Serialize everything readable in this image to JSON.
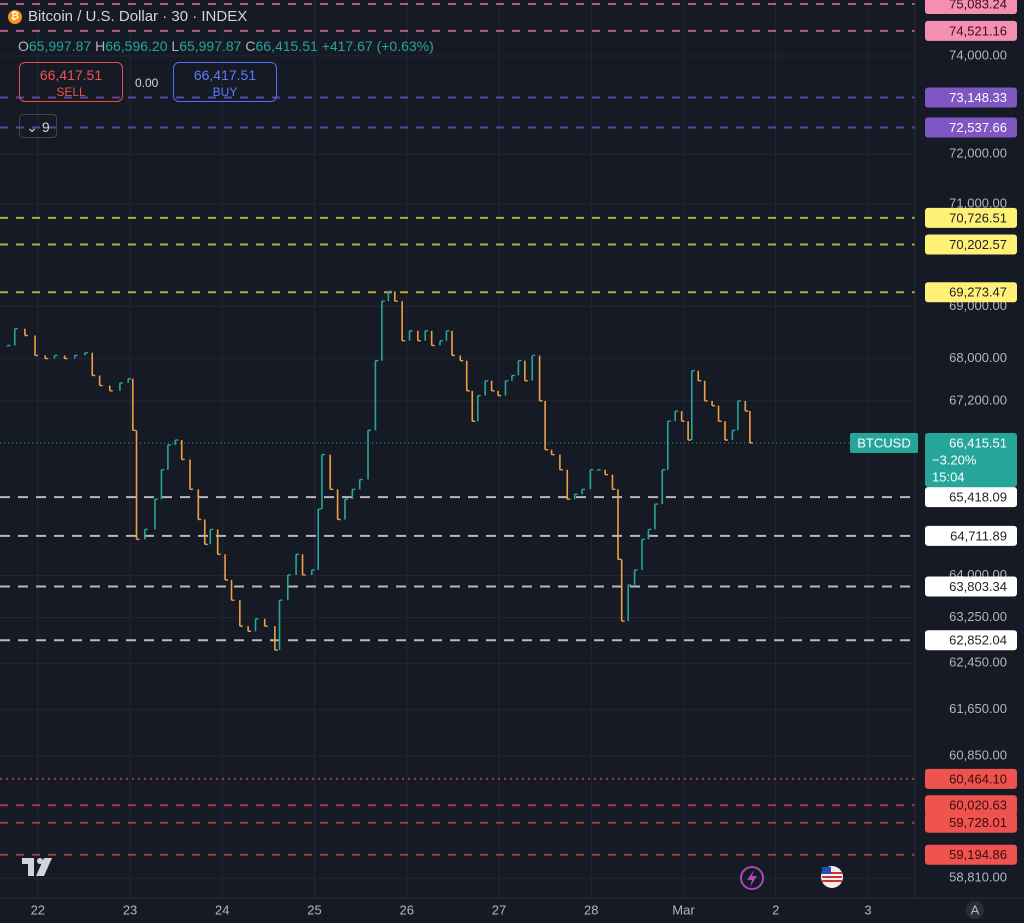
{
  "chart_data": {
    "type": "bars",
    "title": "Bitcoin / U.S. Dollar · 30 · INDEX",
    "header": {
      "o_label": "O",
      "o": "65,997.87",
      "h_label": "H",
      "h": "66,596.20",
      "l_label": "L",
      "l": "65,997.87",
      "c_label": "C",
      "c": "66,415.51",
      "change": "+417.67 (+0.63%)"
    },
    "trade": {
      "sell_price": "66,417.51",
      "sell": "SELL",
      "spread": "0.00",
      "buy_price": "66,417.51",
      "buy": "BUY",
      "indicators": "9"
    },
    "x": [
      -0.33,
      -0.25,
      -0.14,
      -0.03,
      0.08,
      0.18,
      0.29,
      0.4,
      0.51,
      0.59,
      0.67,
      0.78,
      0.89,
      0.98,
      1.03,
      1.07,
      1.16,
      1.27,
      1.34,
      1.41,
      1.49,
      1.56,
      1.65,
      1.74,
      1.81,
      1.87,
      1.95,
      2.03,
      2.1,
      2.19,
      2.28,
      2.36,
      2.46,
      2.57,
      2.62,
      2.71,
      2.8,
      2.87,
      2.97,
      3.04,
      3.08,
      3.17,
      3.25,
      3.33,
      3.41,
      3.49,
      3.58,
      3.66,
      3.73,
      3.8,
      3.87,
      3.95,
      4.03,
      4.12,
      4.2,
      4.27,
      4.36,
      4.43,
      4.49,
      4.58,
      4.65,
      4.71,
      4.77,
      4.85,
      4.92,
      4.99,
      5.07,
      5.14,
      5.21,
      5.28,
      5.36,
      5.44,
      5.5,
      5.57,
      5.66,
      5.74,
      5.82,
      5.9,
      5.99,
      6.07,
      6.15,
      6.23,
      6.29,
      6.33,
      6.4,
      6.47,
      6.55,
      6.62,
      6.69,
      6.77,
      6.83,
      6.91,
      6.98,
      7.05,
      7.09,
      7.16,
      7.23,
      7.31,
      7.38,
      7.45,
      7.53,
      7.59,
      7.67,
      7.72
    ],
    "values": [
      68250,
      68570,
      68440,
      68060,
      68000,
      68060,
      68000,
      68060,
      68110,
      67680,
      67490,
      67390,
      67540,
      67620,
      66650,
      64650,
      64830,
      65380,
      65920,
      66380,
      66470,
      66110,
      65560,
      65010,
      64560,
      64830,
      64380,
      63920,
      63560,
      63100,
      63010,
      63230,
      63100,
      62680,
      63560,
      64010,
      64380,
      64010,
      64100,
      65200,
      66200,
      65560,
      65010,
      65380,
      65560,
      65740,
      66650,
      67960,
      69100,
      69290,
      69100,
      68340,
      68530,
      68340,
      68530,
      68250,
      68340,
      68530,
      68060,
      67960,
      67390,
      66820,
      67300,
      67580,
      67390,
      67300,
      67580,
      67680,
      67960,
      67580,
      68060,
      67200,
      66290,
      66200,
      65920,
      65380,
      65470,
      65560,
      65920,
      65920,
      65830,
      65560,
      64290,
      63190,
      63830,
      64100,
      64650,
      64830,
      65290,
      65920,
      66820,
      67010,
      66820,
      66470,
      67770,
      67580,
      67200,
      67110,
      66820,
      66470,
      66650,
      67200,
      67010,
      66415.51
    ],
    "up_color": "#26a69a",
    "down_color": "#f0a040",
    "xlim": [
      -0.41,
      9.51
    ],
    "xticks": [
      {
        "value": 0,
        "label": "22"
      },
      {
        "value": 1,
        "label": "23"
      },
      {
        "value": 2,
        "label": "24"
      },
      {
        "value": 3,
        "label": "25"
      },
      {
        "value": 4,
        "label": "26"
      },
      {
        "value": 5,
        "label": "27"
      },
      {
        "value": 6,
        "label": "28"
      },
      {
        "value": 7,
        "label": "Mar"
      },
      {
        "value": 8,
        "label": "2"
      },
      {
        "value": 9,
        "label": "3"
      }
    ],
    "ylim": [
      58484,
      75168
    ],
    "log_scale": true,
    "grid": true,
    "yticks": [
      {
        "value": 74000,
        "label": "74,000.00"
      },
      {
        "value": 72000,
        "label": "72,000.00"
      },
      {
        "value": 71000,
        "label": "71,000.00"
      },
      {
        "value": 69000,
        "label": "69,000.00"
      },
      {
        "value": 68000,
        "label": "68,000.00"
      },
      {
        "value": 67200,
        "label": "67,200.00"
      },
      {
        "value": 64000,
        "label": "64,000.00"
      },
      {
        "value": 63250,
        "label": "63,250.00"
      },
      {
        "value": 62450,
        "label": "62,450.00"
      },
      {
        "value": 61650,
        "label": "61,650.00"
      },
      {
        "value": 60850,
        "label": "60,850.00"
      },
      {
        "value": 58810,
        "label": "58,810.00"
      }
    ],
    "levels": [
      {
        "value": 75083.24,
        "label": "75,083.24",
        "color": "#f48fb1",
        "text_color": "#3a1020",
        "line_color": "#b0607e",
        "dash": "8 8"
      },
      {
        "value": 74521.16,
        "label": "74,521.16",
        "color": "#f48fb1",
        "text_color": "#3a1020",
        "line_color": "#b0607e",
        "dash": "8 8"
      },
      {
        "value": 73148.33,
        "label": "73,148.33",
        "color": "#7e57c2",
        "text_color": "#ffffff",
        "line_color": "#5e45a0",
        "dash": "8 8"
      },
      {
        "value": 72537.66,
        "label": "72,537.66",
        "color": "#7e57c2",
        "text_color": "#ffffff",
        "line_color": "#5e45a0",
        "dash": "8 8"
      },
      {
        "value": 70726.51,
        "label": "70,726.51",
        "color": "#fff176",
        "text_color": "#222222",
        "line_color": "#b5ad32",
        "dash": "8 8"
      },
      {
        "value": 70202.57,
        "label": "70,202.57",
        "color": "#fff176",
        "text_color": "#222222",
        "line_color": "#b5ad32",
        "dash": "8 8"
      },
      {
        "value": 69273.47,
        "label": "69,273.47",
        "color": "#fff176",
        "text_color": "#222222",
        "line_color": "#b5ad32",
        "dash": "8 8"
      },
      {
        "value": 65418.09,
        "label": "65,418.09",
        "color": "#ffffff",
        "text_color": "#222222",
        "line_color": "#b8b8b8",
        "dash": "10 8"
      },
      {
        "value": 64711.89,
        "label": "64,711.89",
        "color": "#ffffff",
        "text_color": "#222222",
        "line_color": "#b8b8b8",
        "dash": "10 8"
      },
      {
        "value": 63803.34,
        "label": "63,803.34",
        "color": "#ffffff",
        "text_color": "#222222",
        "line_color": "#b8b8b8",
        "dash": "10 8"
      },
      {
        "value": 62852.04,
        "label": "62,852.04",
        "color": "#ffffff",
        "text_color": "#222222",
        "line_color": "#b8b8b8",
        "dash": "10 8"
      },
      {
        "value": 60464.1,
        "label": "60,464.10",
        "color": "#ef5350",
        "text_color": "#3a0a0a",
        "line_color": "#a83a3a",
        "dash": "2 4"
      },
      {
        "value": 60020.63,
        "label": "60,020.63",
        "color": "#ef5350",
        "text_color": "#3a0a0a",
        "line_color": "#a83a3a",
        "dash": "8 8"
      },
      {
        "value": 59728.01,
        "label": "59,728.01",
        "color": "#ef5350",
        "text_color": "#3a0a0a",
        "line_color": "#a83a3a",
        "dash": "8 8"
      },
      {
        "value": 59194.86,
        "label": "59,194.86",
        "color": "#ef5350",
        "text_color": "#3a0a0a",
        "line_color": "#a83a3a",
        "dash": "8 8"
      }
    ],
    "current": {
      "symbol": "BTCUSD",
      "price": {
        "value": 66415.51,
        "label": "66,415.51"
      },
      "change_pct": "−3.20%",
      "countdown": "15:04",
      "color": "#26a69a"
    }
  }
}
